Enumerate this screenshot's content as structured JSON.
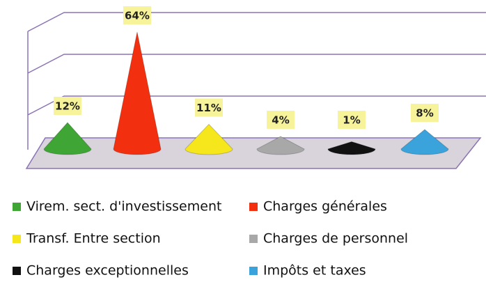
{
  "chart_data": {
    "type": "cone",
    "categories": [
      "Virem. sect. d'investissement",
      "Charges générales",
      "Transf. Entre section",
      "Charges de personnel",
      "Charges exceptionnelles",
      "Impôts et taxes"
    ],
    "values": [
      12,
      64,
      11,
      4,
      1,
      8
    ],
    "value_labels": [
      "12%",
      "64%",
      "11%",
      "4%",
      "1%",
      "8%"
    ],
    "colors": [
      "#3fa535",
      "#f2300f",
      "#f6e61c",
      "#a8a8a8",
      "#111111",
      "#3aa3db"
    ]
  }
}
